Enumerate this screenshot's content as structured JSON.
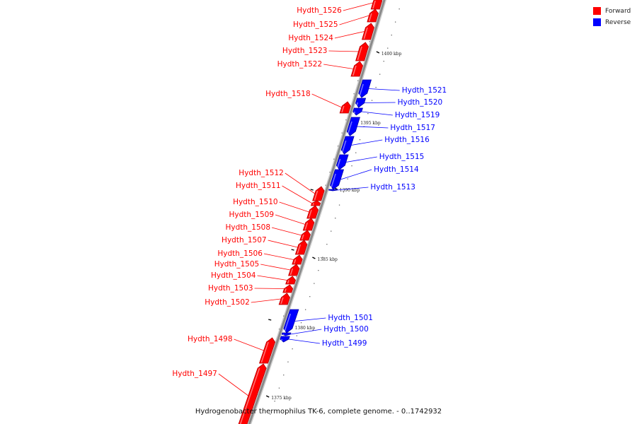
{
  "caption": "Hydrogenobacter thermophilus TK-6, complete genome. - 0..1742932",
  "legend": {
    "forward": {
      "label": "Forward",
      "color": "#ff0000"
    },
    "reverse": {
      "label": "Reverse",
      "color": "#0000ff"
    }
  },
  "colors": {
    "forward": "#ff0000",
    "forward_dark": "#b80000",
    "reverse": "#0000ff",
    "reverse_dark": "#0000a8",
    "backbone": "#8a8a8a"
  },
  "ticks": [
    "1400 kbp",
    "1395 kbp",
    "1390 kbp",
    "1385 kbp",
    "1380 kbp",
    "1375 kbp"
  ],
  "genes": [
    {
      "name": "Hydth_1526",
      "strand": "forward"
    },
    {
      "name": "Hydth_1525",
      "strand": "forward"
    },
    {
      "name": "Hydth_1524",
      "strand": "forward"
    },
    {
      "name": "Hydth_1523",
      "strand": "forward"
    },
    {
      "name": "Hydth_1522",
      "strand": "forward"
    },
    {
      "name": "Hydth_1521",
      "strand": "reverse"
    },
    {
      "name": "Hydth_1520",
      "strand": "reverse"
    },
    {
      "name": "Hydth_1518",
      "strand": "forward"
    },
    {
      "name": "Hydth_1519",
      "strand": "reverse"
    },
    {
      "name": "Hydth_1517",
      "strand": "reverse"
    },
    {
      "name": "Hydth_1516",
      "strand": "reverse"
    },
    {
      "name": "Hydth_1515",
      "strand": "reverse"
    },
    {
      "name": "Hydth_1514",
      "strand": "reverse"
    },
    {
      "name": "Hydth_1513",
      "strand": "reverse"
    },
    {
      "name": "Hydth_1512",
      "strand": "forward"
    },
    {
      "name": "Hydth_1511",
      "strand": "forward"
    },
    {
      "name": "Hydth_1510",
      "strand": "forward"
    },
    {
      "name": "Hydth_1509",
      "strand": "forward"
    },
    {
      "name": "Hydth_1508",
      "strand": "forward"
    },
    {
      "name": "Hydth_1507",
      "strand": "forward"
    },
    {
      "name": "Hydth_1506",
      "strand": "forward"
    },
    {
      "name": "Hydth_1505",
      "strand": "forward"
    },
    {
      "name": "Hydth_1504",
      "strand": "forward"
    },
    {
      "name": "Hydth_1503",
      "strand": "forward"
    },
    {
      "name": "Hydth_1502",
      "strand": "forward"
    },
    {
      "name": "Hydth_1501",
      "strand": "reverse"
    },
    {
      "name": "Hydth_1500",
      "strand": "reverse"
    },
    {
      "name": "Hydth_1499",
      "strand": "reverse"
    },
    {
      "name": "Hydth_1498",
      "strand": "forward"
    },
    {
      "name": "Hydth_1497",
      "strand": "forward"
    }
  ]
}
